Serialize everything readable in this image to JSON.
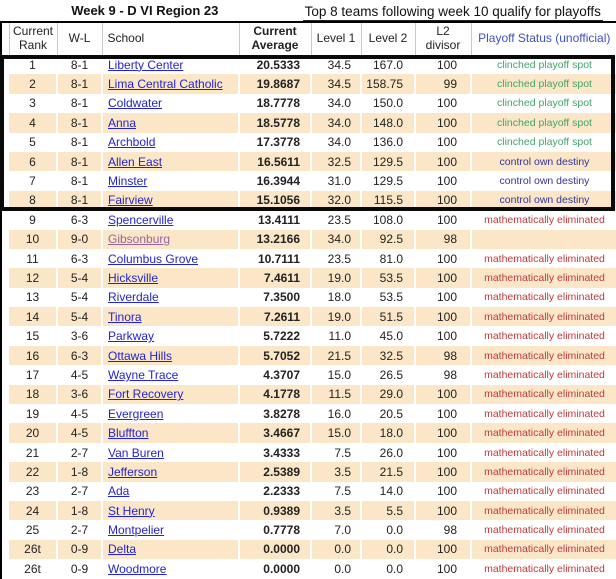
{
  "page": {
    "title": "Week 9 - D VI Region 23",
    "subtitle": "Top 8 teams following week 10 qualify for playoffs"
  },
  "table": {
    "columns": {
      "rank": "Current Rank",
      "record": "W-L",
      "school": "School",
      "average": "Current Average",
      "level1": "Level 1",
      "level2": "Level 2",
      "l2_divisor": "L2 divisor",
      "status": "Playoff Status (unofficial)"
    },
    "rows": [
      {
        "rank": "1",
        "record": "8-1",
        "school": "Liberty Center",
        "average": "20.5333",
        "level1": "34.5",
        "level2": "167.0",
        "l2_divisor": "100",
        "status": "clinched playoff spot",
        "status_type": "clinched",
        "visited": false
      },
      {
        "rank": "2",
        "record": "8-1",
        "school": "Lima Central Catholic",
        "average": "19.8687",
        "level1": "34.5",
        "level2": "158.75",
        "l2_divisor": "99",
        "status": "clinched playoff spot",
        "status_type": "clinched",
        "visited": false
      },
      {
        "rank": "3",
        "record": "8-1",
        "school": "Coldwater",
        "average": "18.7778",
        "level1": "34.0",
        "level2": "150.0",
        "l2_divisor": "100",
        "status": "clinched playoff spot",
        "status_type": "clinched",
        "visited": false
      },
      {
        "rank": "4",
        "record": "8-1",
        "school": "Anna",
        "average": "18.5778",
        "level1": "34.0",
        "level2": "148.0",
        "l2_divisor": "100",
        "status": "clinched playoff spot",
        "status_type": "clinched",
        "visited": false
      },
      {
        "rank": "5",
        "record": "8-1",
        "school": "Archbold",
        "average": "17.3778",
        "level1": "34.0",
        "level2": "136.0",
        "l2_divisor": "100",
        "status": "clinched playoff spot",
        "status_type": "clinched",
        "visited": false
      },
      {
        "rank": "6",
        "record": "8-1",
        "school": "Allen East",
        "average": "16.5611",
        "level1": "32.5",
        "level2": "129.5",
        "l2_divisor": "100",
        "status": "control own destiny",
        "status_type": "control",
        "visited": false
      },
      {
        "rank": "7",
        "record": "8-1",
        "school": "Minster",
        "average": "16.3944",
        "level1": "31.0",
        "level2": "129.5",
        "l2_divisor": "100",
        "status": "control own destiny",
        "status_type": "control",
        "visited": false
      },
      {
        "rank": "8",
        "record": "8-1",
        "school": "Fairview",
        "average": "15.1056",
        "level1": "32.0",
        "level2": "115.5",
        "l2_divisor": "100",
        "status": "control own destiny",
        "status_type": "control",
        "visited": false
      },
      {
        "rank": "9",
        "record": "6-3",
        "school": "Spencerville",
        "average": "13.4111",
        "level1": "23.5",
        "level2": "108.0",
        "l2_divisor": "100",
        "status": "mathematically eliminated",
        "status_type": "eliminated",
        "visited": false
      },
      {
        "rank": "10",
        "record": "9-0",
        "school": "Gibsonburg",
        "average": "13.2166",
        "level1": "34.0",
        "level2": "92.5",
        "l2_divisor": "98",
        "status": "",
        "status_type": "none",
        "visited": true
      },
      {
        "rank": "11",
        "record": "6-3",
        "school": "Columbus Grove",
        "average": "10.7111",
        "level1": "23.5",
        "level2": "81.0",
        "l2_divisor": "100",
        "status": "mathematically eliminated",
        "status_type": "eliminated",
        "visited": false
      },
      {
        "rank": "12",
        "record": "5-4",
        "school": "Hicksville",
        "average": "7.4611",
        "level1": "19.0",
        "level2": "53.5",
        "l2_divisor": "100",
        "status": "mathematically eliminated",
        "status_type": "eliminated",
        "visited": false
      },
      {
        "rank": "13",
        "record": "5-4",
        "school": "Riverdale",
        "average": "7.3500",
        "level1": "18.0",
        "level2": "53.5",
        "l2_divisor": "100",
        "status": "mathematically eliminated",
        "status_type": "eliminated",
        "visited": false
      },
      {
        "rank": "14",
        "record": "5-4",
        "school": "Tinora",
        "average": "7.2611",
        "level1": "19.0",
        "level2": "51.5",
        "l2_divisor": "100",
        "status": "mathematically eliminated",
        "status_type": "eliminated",
        "visited": false
      },
      {
        "rank": "15",
        "record": "3-6",
        "school": "Parkway",
        "average": "5.7222",
        "level1": "11.0",
        "level2": "45.0",
        "l2_divisor": "100",
        "status": "mathematically eliminated",
        "status_type": "eliminated",
        "visited": false
      },
      {
        "rank": "16",
        "record": "6-3",
        "school": "Ottawa Hills",
        "average": "5.7052",
        "level1": "21.5",
        "level2": "32.5",
        "l2_divisor": "98",
        "status": "mathematically eliminated",
        "status_type": "eliminated",
        "visited": false
      },
      {
        "rank": "17",
        "record": "4-5",
        "school": "Wayne Trace",
        "average": "4.3707",
        "level1": "15.0",
        "level2": "26.5",
        "l2_divisor": "98",
        "status": "mathematically eliminated",
        "status_type": "eliminated",
        "visited": false
      },
      {
        "rank": "18",
        "record": "3-6",
        "school": "Fort Recovery",
        "average": "4.1778",
        "level1": "11.5",
        "level2": "29.0",
        "l2_divisor": "100",
        "status": "mathematically eliminated",
        "status_type": "eliminated",
        "visited": false
      },
      {
        "rank": "19",
        "record": "4-5",
        "school": "Evergreen",
        "average": "3.8278",
        "level1": "16.0",
        "level2": "20.5",
        "l2_divisor": "100",
        "status": "mathematically eliminated",
        "status_type": "eliminated",
        "visited": false
      },
      {
        "rank": "20",
        "record": "4-5",
        "school": "Bluffton",
        "average": "3.4667",
        "level1": "15.0",
        "level2": "18.0",
        "l2_divisor": "100",
        "status": "mathematically eliminated",
        "status_type": "eliminated",
        "visited": false
      },
      {
        "rank": "21",
        "record": "2-7",
        "school": "Van Buren",
        "average": "3.4333",
        "level1": "7.5",
        "level2": "26.0",
        "l2_divisor": "100",
        "status": "mathematically eliminated",
        "status_type": "eliminated",
        "visited": false
      },
      {
        "rank": "22",
        "record": "1-8",
        "school": "Jefferson",
        "average": "2.5389",
        "level1": "3.5",
        "level2": "21.5",
        "l2_divisor": "100",
        "status": "mathematically eliminated",
        "status_type": "eliminated",
        "visited": false
      },
      {
        "rank": "23",
        "record": "2-7",
        "school": "Ada",
        "average": "2.2333",
        "level1": "7.5",
        "level2": "14.0",
        "l2_divisor": "100",
        "status": "mathematically eliminated",
        "status_type": "eliminated",
        "visited": false
      },
      {
        "rank": "24",
        "record": "1-8",
        "school": "St Henry",
        "average": "0.9389",
        "level1": "3.5",
        "level2": "5.5",
        "l2_divisor": "100",
        "status": "mathematically eliminated",
        "status_type": "eliminated",
        "visited": false
      },
      {
        "rank": "25",
        "record": "2-7",
        "school": "Montpelier",
        "average": "0.7778",
        "level1": "7.0",
        "level2": "0.0",
        "l2_divisor": "98",
        "status": "mathematically eliminated",
        "status_type": "eliminated",
        "visited": false
      },
      {
        "rank": "26t",
        "record": "0-9",
        "school": "Delta",
        "average": "0.0000",
        "level1": "0.0",
        "level2": "0.0",
        "l2_divisor": "100",
        "status": "mathematically eliminated",
        "status_type": "eliminated",
        "visited": false
      },
      {
        "rank": "26t",
        "record": "0-9",
        "school": "Woodmore",
        "average": "0.0000",
        "level1": "0.0",
        "level2": "0.0",
        "l2_divisor": "100",
        "status": "mathematically eliminated",
        "status_type": "eliminated",
        "visited": false
      }
    ]
  },
  "colors": {
    "row_stripe": "#fbe7c8",
    "link_blue": "#2323cf",
    "link_visited": "#96639b",
    "status_clinched_green": "#3fa568",
    "status_control_navy": "#33339b",
    "status_eliminated_red": "#c03a3a",
    "header_status_blue": "#4050c4",
    "top8_frame_black": "#0a0a0a"
  }
}
